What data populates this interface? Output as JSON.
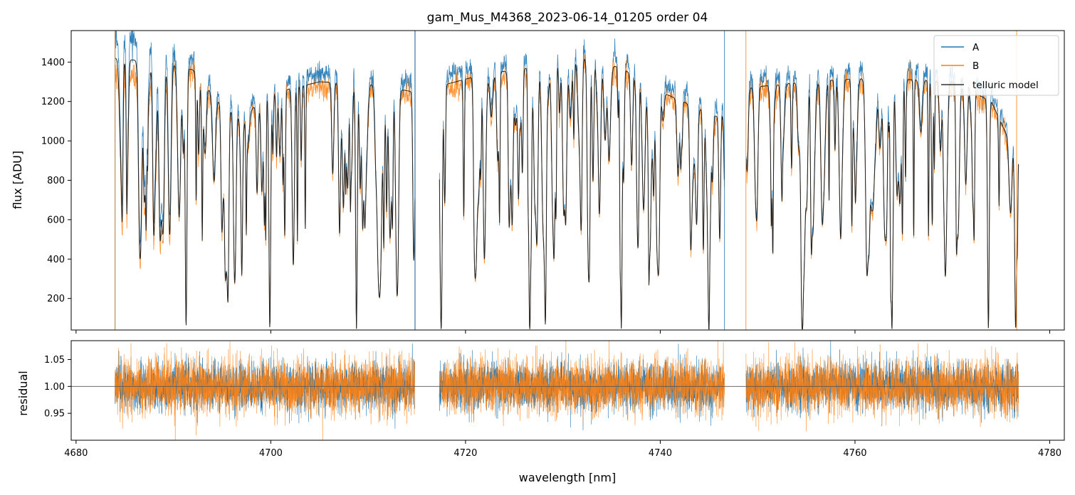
{
  "chart_data": {
    "type": "line",
    "title": "gam_Mus_M4368_2023-06-14_01205  order 04",
    "xlabel": "wavelength [nm]",
    "xlim": [
      4679.5,
      4781.5
    ],
    "x_ticks": [
      4680,
      4700,
      4720,
      4740,
      4760,
      4780
    ],
    "x_tick_labels": [
      "4680",
      "4700",
      "4720",
      "4740",
      "4760",
      "4780"
    ],
    "data_range": [
      4684.0,
      4776.8
    ],
    "gaps": [
      [
        4714.8,
        4717.3
      ],
      [
        4746.6,
        4748.8
      ]
    ],
    "colors": {
      "A": "#1f77b4",
      "B": "#ff7f0e",
      "model": "#222222",
      "reference": "#555555"
    },
    "legend": {
      "location": "top-right",
      "entries": [
        {
          "name": "A",
          "color": "#1f77b4"
        },
        {
          "name": "B",
          "color": "#ff7f0e"
        },
        {
          "name": "telluric model",
          "color": "#333333"
        }
      ]
    },
    "panels": [
      {
        "name": "flux",
        "ylabel": "flux [ADU]",
        "ylim": [
          40,
          1560
        ],
        "y_ticks": [
          200,
          400,
          600,
          800,
          1000,
          1200,
          1400
        ],
        "y_tick_labels": [
          "200",
          "400",
          "600",
          "800",
          "1000",
          "1200",
          "1400"
        ],
        "continuum": [
          [
            4684,
            1420
          ],
          [
            4690,
            1390
          ],
          [
            4692,
            1360
          ],
          [
            4695,
            1180
          ],
          [
            4697,
            1120
          ],
          [
            4700,
            1240
          ],
          [
            4705,
            1300
          ],
          [
            4710,
            1290
          ],
          [
            4714.5,
            1250
          ],
          [
            4717.5,
            1280
          ],
          [
            4722,
            1340
          ],
          [
            4728,
            1380
          ],
          [
            4732,
            1420
          ],
          [
            4736,
            1370
          ],
          [
            4740,
            1250
          ],
          [
            4746,
            1120
          ],
          [
            4749,
            1270
          ],
          [
            4755,
            1300
          ],
          [
            4762,
            1320
          ],
          [
            4770,
            1300
          ],
          [
            4774,
            1200
          ],
          [
            4776.8,
            900
          ]
        ],
        "deep_lines": [
          {
            "x": 4691.3,
            "min": 60
          },
          {
            "x": 4695.6,
            "min": 250
          },
          {
            "x": 4699.9,
            "min": 50
          },
          {
            "x": 4708.8,
            "min": 45
          },
          {
            "x": 4715.0,
            "min": 60
          },
          {
            "x": 4717.5,
            "min": 50
          },
          {
            "x": 4726.6,
            "min": 50
          },
          {
            "x": 4728.2,
            "min": 100
          },
          {
            "x": 4736.0,
            "min": 50
          },
          {
            "x": 4745.0,
            "min": 45
          },
          {
            "x": 4754.6,
            "min": 45
          },
          {
            "x": 4763.8,
            "min": 45
          },
          {
            "x": 4773.7,
            "min": 50
          },
          {
            "x": 4776.5,
            "min": 60
          }
        ],
        "series": [
          {
            "name": "A",
            "role": "observed spectrum A"
          },
          {
            "name": "B",
            "role": "observed spectrum B"
          },
          {
            "name": "telluric model",
            "role": "model"
          }
        ]
      },
      {
        "name": "residual",
        "ylabel": "residual",
        "ylim": [
          0.9,
          1.085
        ],
        "y_ticks": [
          0.95,
          1.0,
          1.05
        ],
        "y_tick_labels": [
          "0.95",
          "1.00",
          "1.05"
        ],
        "reference_line": 1.0,
        "scatter_sigma": {
          "A": 0.022,
          "B": 0.026
        }
      }
    ]
  }
}
